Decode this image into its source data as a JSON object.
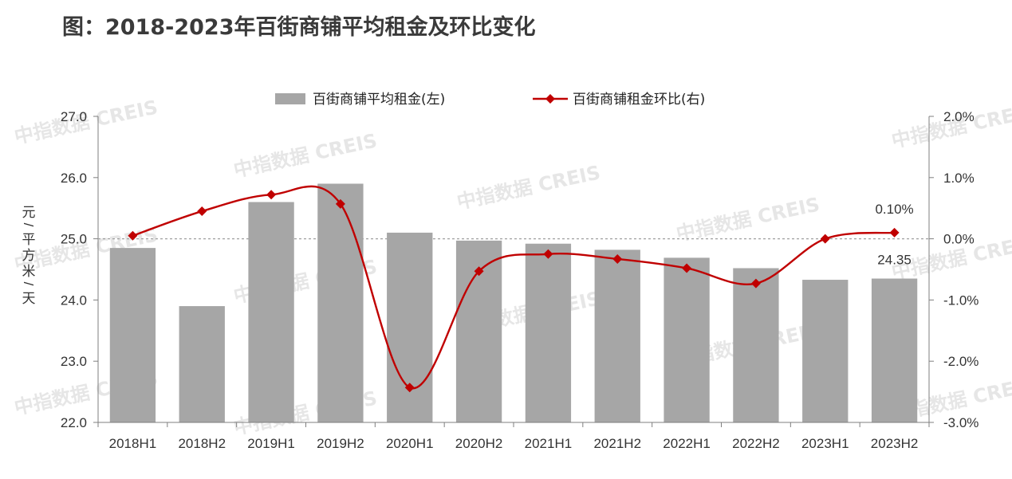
{
  "title": "图：2018-2023年百街商铺平均租金及环比变化",
  "watermark": "中指数据 CREIS",
  "chart_data": {
    "type": "bar",
    "categories": [
      "2018H1",
      "2018H2",
      "2019H1",
      "2019H2",
      "2020H1",
      "2020H2",
      "2021H1",
      "2021H2",
      "2022H1",
      "2022H2",
      "2023H1",
      "2023H2"
    ],
    "series": [
      {
        "name": "百街商铺平均租金(左)",
        "type": "bar",
        "axis": "left",
        "color": "#a6a6a6",
        "values": [
          24.85,
          23.9,
          25.6,
          25.9,
          25.1,
          24.97,
          24.92,
          24.82,
          24.69,
          24.52,
          24.33,
          24.35
        ]
      },
      {
        "name": "百街商铺租金环比(右)",
        "type": "line",
        "axis": "right",
        "color": "#c00000",
        "values": [
          0.05,
          0.45,
          0.72,
          0.57,
          -2.43,
          -0.53,
          -0.25,
          -0.33,
          -0.48,
          -0.73,
          0.0,
          0.1
        ]
      }
    ],
    "y_left": {
      "label": "元/平方米/天",
      "ylim": [
        22.0,
        27.0
      ],
      "ticks": [
        "22.0",
        "23.0",
        "24.0",
        "25.0",
        "26.0",
        "27.0"
      ]
    },
    "y_right": {
      "ylim": [
        -3.0,
        2.0
      ],
      "ticks": [
        "-3.0%",
        "-2.0%",
        "-1.0%",
        "0.0%",
        "1.0%",
        "2.0%"
      ]
    },
    "annotations": [
      {
        "text": "24.35",
        "series": 0,
        "index": 11
      },
      {
        "text": "0.10%",
        "series": 1,
        "index": 11
      }
    ],
    "legend_position": "top",
    "grid": false
  }
}
